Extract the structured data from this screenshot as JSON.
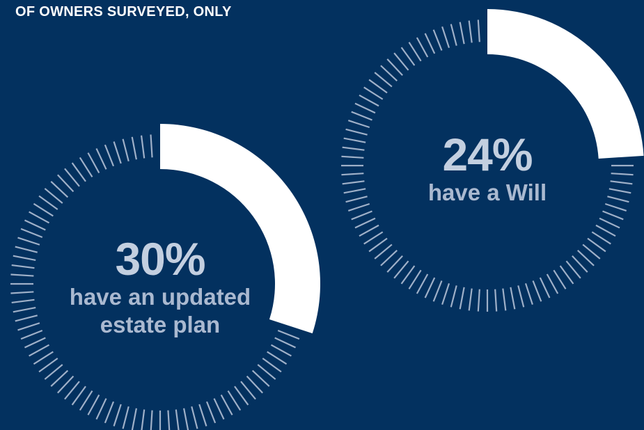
{
  "title": "OF OWNERS SURVEYED, ONLY",
  "chart_data": [
    {
      "type": "gauge",
      "values": [
        30
      ],
      "value_labels": [
        "30%"
      ],
      "label": "have an updated estate plan",
      "color": "#ffffff",
      "track_color": "#9fb0c8",
      "ylim": [
        0,
        100
      ]
    },
    {
      "type": "gauge",
      "values": [
        24
      ],
      "value_labels": [
        "24%"
      ],
      "label": "have a Will",
      "color": "#ffffff",
      "track_color": "#9fb0c8",
      "ylim": [
        0,
        100
      ]
    }
  ]
}
